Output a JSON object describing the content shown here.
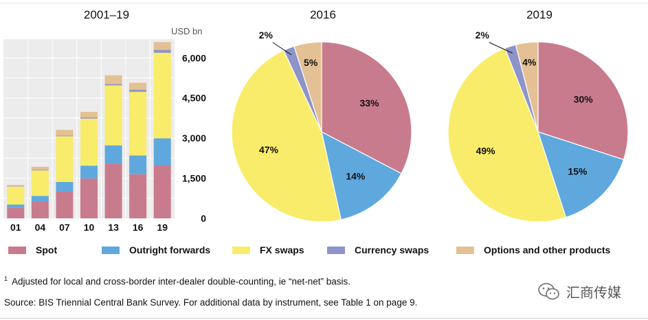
{
  "chart_data": [
    {
      "type": "bar",
      "stacked": true,
      "title": "2001–19",
      "unit_label": "USD bn",
      "categories": [
        "01",
        "04",
        "07",
        "10",
        "13",
        "16",
        "19"
      ],
      "ylim": [
        0,
        6700
      ],
      "yticks": [
        0,
        1500,
        3000,
        4500,
        6000
      ],
      "ytick_labels": [
        "0",
        "1,500",
        "3,000",
        "4,500",
        "6,000"
      ],
      "grid": true,
      "series": [
        {
          "name": "Spot",
          "color": "#c97b8e",
          "values": [
            390,
            630,
            1000,
            1490,
            2050,
            1650,
            1990
          ]
        },
        {
          "name": "Outright forwards",
          "color": "#5fa8de",
          "values": [
            130,
            210,
            360,
            480,
            680,
            700,
            1000
          ]
        },
        {
          "name": "FX swaps",
          "color": "#f8ec6a",
          "values": [
            660,
            950,
            1710,
            1760,
            2240,
            2380,
            3200
          ]
        },
        {
          "name": "Currency swaps",
          "color": "#8e94c9",
          "values": [
            10,
            20,
            30,
            40,
            50,
            80,
            110
          ]
        },
        {
          "name": "Options and other products",
          "color": "#e3c194",
          "values": [
            60,
            120,
            210,
            210,
            330,
            260,
            290
          ]
        }
      ]
    },
    {
      "type": "pie",
      "title": "2016",
      "slices": [
        {
          "name": "Spot",
          "value": 33,
          "label": "33%"
        },
        {
          "name": "Outright forwards",
          "value": 14,
          "label": "14%"
        },
        {
          "name": "FX swaps",
          "value": 47,
          "label": "47%"
        },
        {
          "name": "Currency swaps",
          "value": 2,
          "label": "2%"
        },
        {
          "name": "Options and other products",
          "value": 5,
          "label": "5%"
        }
      ]
    },
    {
      "type": "pie",
      "title": "2019",
      "slices": [
        {
          "name": "Spot",
          "value": 30,
          "label": "30%"
        },
        {
          "name": "Outright forwards",
          "value": 15,
          "label": "15%"
        },
        {
          "name": "FX swaps",
          "value": 49,
          "label": "49%"
        },
        {
          "name": "Currency swaps",
          "value": 2,
          "label": "2%"
        },
        {
          "name": "Options and other products",
          "value": 4,
          "label": "4%"
        }
      ]
    }
  ],
  "legend": [
    {
      "label": "Spot",
      "color": "#c97b8e"
    },
    {
      "label": "Outright forwards",
      "color": "#5fa8de"
    },
    {
      "label": "FX swaps",
      "color": "#f8ec6a"
    },
    {
      "label": "Currency swaps",
      "color": "#8e94c9"
    },
    {
      "label": "Options and other products",
      "color": "#e3c194"
    }
  ],
  "footnotes": {
    "note_marker": "1",
    "note_text": "Adjusted for local and cross-border inter-dealer double-counting, ie “net-net” basis.",
    "source": "Source: BIS Triennial Central Bank Survey. For additional data by instrument, see Table 1 on page 9."
  },
  "watermark": {
    "text": "汇商传媒",
    "icon": "wechat-icon"
  }
}
